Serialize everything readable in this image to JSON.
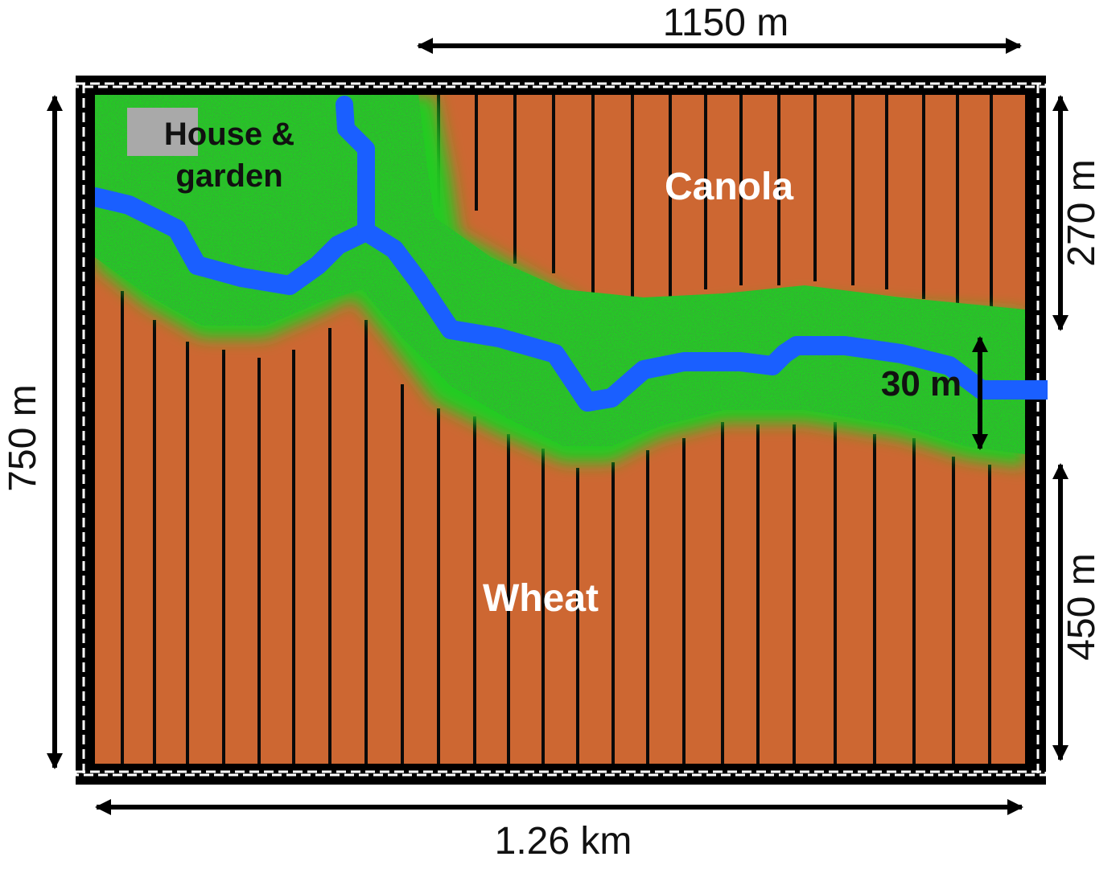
{
  "labels": {
    "house": [
      "House &",
      "garden"
    ],
    "canola": "Canola",
    "wheat": "Wheat",
    "buffer_width": "30 m"
  },
  "dimensions": {
    "top_width": "1150 m",
    "bottom_width": "1.26 km",
    "left_height": "750 m",
    "right_upper": "270 m",
    "right_lower": "450 m"
  },
  "colors": {
    "crop": "#cd6732",
    "riparian": "#22cc22",
    "stream": "#1a5fff",
    "house": "#a9a9a9",
    "border": "#000000",
    "furrow": "#0a0a0a"
  }
}
